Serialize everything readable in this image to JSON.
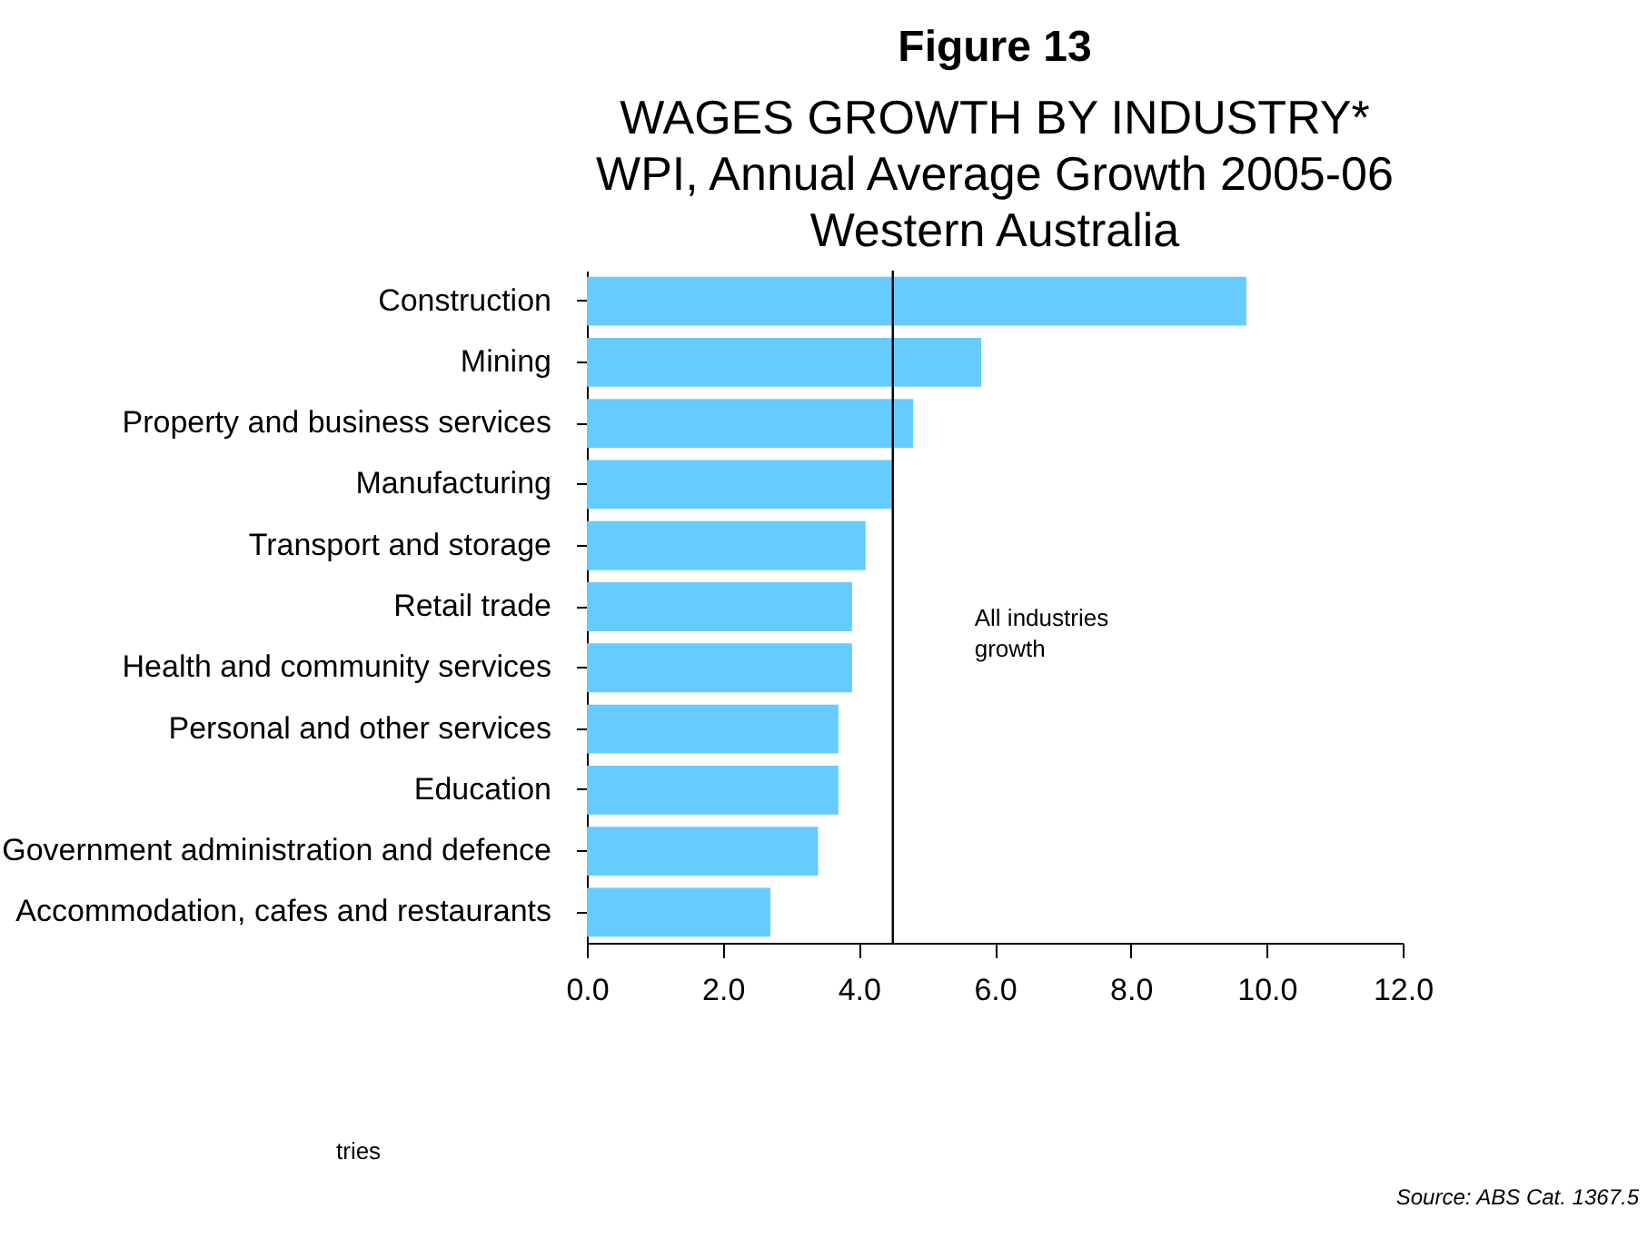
{
  "chart_data": {
    "type": "bar",
    "orientation": "horizontal",
    "title": "Figure 13",
    "subtitle": "WAGES GROWTH BY INDUSTRY*\nWPI, Annual Average Growth 2005-06\nWestern Australia",
    "categories": [
      "Construction",
      "Mining",
      "Property and business services",
      "Manufacturing",
      "Transport and storage",
      "Retail trade",
      "Health and community services",
      "Personal and other services",
      "Education",
      "Government administration and defence",
      "Accommodation, cafes and restaurants"
    ],
    "values": [
      9.7,
      5.8,
      4.8,
      4.5,
      4.1,
      3.9,
      3.9,
      3.7,
      3.7,
      3.4,
      2.7
    ],
    "color": "#66ccff",
    "xlim": [
      0,
      12
    ],
    "xticks": [
      {
        "value": 0,
        "label": "0.0"
      },
      {
        "value": 2,
        "label": "2.0"
      },
      {
        "value": 4,
        "label": "4.0"
      },
      {
        "value": 6,
        "label": "6.0"
      },
      {
        "value": 8,
        "label": "8.0"
      },
      {
        "value": 10,
        "label": "10.0"
      },
      {
        "value": 12,
        "label": "12.0"
      }
    ],
    "ref_lines": [
      {
        "axis": "x",
        "value": 4.5,
        "label": "All industries\ngrowth",
        "color": "#000000"
      }
    ],
    "annotations": [
      "tries",
      "Source: ABS Cat. 1367.5"
    ],
    "grid": false
  }
}
